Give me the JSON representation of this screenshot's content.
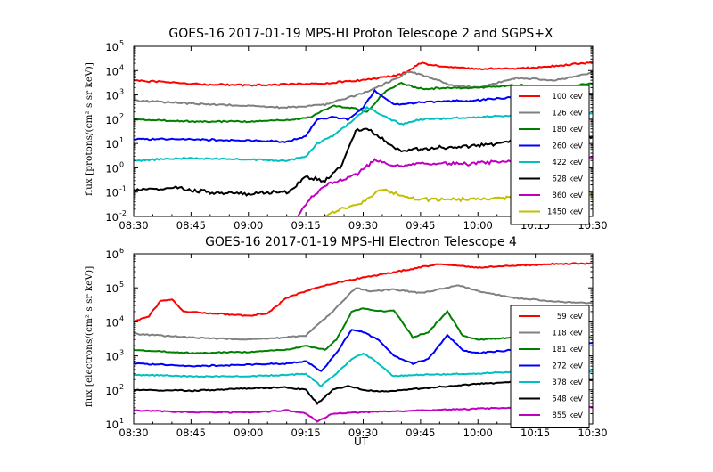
{
  "chart_data": [
    {
      "type": "line",
      "title": "GOES-16 2017-01-19 MPS-HI Proton Telescope 2 and SGPS+X",
      "ylabel": "flux [protons/(cm² s sr keV)]",
      "yscale": "log",
      "ylim_exp": [
        -2,
        5
      ],
      "y_ticks": [
        "10",
        "10",
        "10",
        "10",
        "10",
        "10",
        "10",
        "10"
      ],
      "y_tick_exponents": [
        "-2",
        "-1",
        "0",
        "1",
        "2",
        "3",
        "4",
        "5"
      ],
      "x_ticks": [
        "08:30",
        "08:45",
        "09:00",
        "09:15",
        "09:30",
        "09:45",
        "10:00",
        "10:15",
        "10:30"
      ],
      "x_tick_minutes": [
        510,
        525,
        540,
        555,
        570,
        585,
        600,
        615,
        630
      ],
      "xlim": [
        "08:30",
        "10:30"
      ],
      "legend_position": "right",
      "series": [
        {
          "name": "100 keV",
          "color": "#ff0000",
          "x": [
            "08:30",
            "08:45",
            "09:00",
            "09:10",
            "09:20",
            "09:30",
            "09:40",
            "09:45",
            "09:50",
            "10:00",
            "10:10",
            "10:20",
            "10:30"
          ],
          "y": [
            4000,
            2800,
            2500,
            2700,
            3000,
            4000,
            7000,
            20000,
            15000,
            12000,
            12000,
            15000,
            22000
          ]
        },
        {
          "name": "126 keV",
          "color": "#808080",
          "x": [
            "08:30",
            "08:45",
            "09:00",
            "09:10",
            "09:20",
            "09:30",
            "09:37",
            "09:42",
            "09:48",
            "09:53",
            "10:00",
            "10:10",
            "10:20",
            "10:30"
          ],
          "y": [
            600,
            450,
            350,
            300,
            400,
            1200,
            3500,
            9000,
            5000,
            2500,
            2000,
            5000,
            4000,
            8000
          ]
        },
        {
          "name": "180 keV",
          "color": "#008000",
          "x": [
            "08:30",
            "08:45",
            "09:00",
            "09:10",
            "09:16",
            "09:22",
            "09:27",
            "09:31",
            "09:36",
            "09:40",
            "09:45",
            "10:00",
            "10:10",
            "10:20",
            "10:30"
          ],
          "y": [
            100,
            80,
            80,
            90,
            120,
            350,
            300,
            200,
            1500,
            3000,
            1800,
            2000,
            2500,
            2000,
            3000
          ]
        },
        {
          "name": "260 keV",
          "color": "#0000ff",
          "x": [
            "08:30",
            "08:45",
            "09:00",
            "09:10",
            "09:15",
            "09:18",
            "09:22",
            "09:26",
            "09:30",
            "09:33",
            "09:38",
            "09:45",
            "10:00",
            "10:10",
            "10:20",
            "10:30"
          ],
          "y": [
            15,
            15,
            13,
            12,
            20,
            100,
            120,
            100,
            300,
            1500,
            400,
            500,
            600,
            800,
            1000,
            1200
          ]
        },
        {
          "name": "422 keV",
          "color": "#00c0c0",
          "x": [
            "08:30",
            "08:45",
            "09:00",
            "09:10",
            "09:15",
            "09:18",
            "09:22",
            "09:27",
            "09:31",
            "09:35",
            "09:40",
            "09:45",
            "10:00",
            "10:10",
            "10:20",
            "10:30"
          ],
          "y": [
            2,
            2.5,
            2.2,
            2,
            3,
            10,
            20,
            80,
            300,
            150,
            60,
            100,
            120,
            150,
            150,
            180
          ]
        },
        {
          "name": "628 keV",
          "color": "#000000",
          "x": [
            "08:30",
            "08:40",
            "08:50",
            "09:00",
            "09:05",
            "09:10",
            "09:15",
            "09:20",
            "09:24",
            "09:28",
            "09:31",
            "09:35",
            "09:40",
            "09:45",
            "10:00",
            "10:10",
            "10:20",
            "10:30"
          ],
          "y": [
            0.12,
            0.15,
            0.1,
            0.08,
            0.1,
            0.1,
            0.4,
            0.3,
            1,
            30,
            45,
            15,
            5,
            6,
            8,
            12,
            15,
            20
          ]
        },
        {
          "name": "860 keV",
          "color": "#c000c0",
          "x": [
            "09:13",
            "09:16",
            "09:20",
            "09:24",
            "09:28",
            "09:33",
            "09:38",
            "09:45",
            "10:00",
            "10:10",
            "10:20",
            "10:30"
          ],
          "y": [
            0.01,
            0.05,
            0.2,
            0.3,
            0.5,
            2,
            1.2,
            1.5,
            1.5,
            2,
            2.5,
            2.8
          ]
        },
        {
          "name": "1450 keV",
          "color": "#c0c000",
          "x": [
            "09:20",
            "09:24",
            "09:28",
            "09:31",
            "09:35",
            "09:40",
            "09:45",
            "10:00",
            "10:10",
            "10:20",
            "10:30"
          ],
          "y": [
            0.01,
            0.02,
            0.03,
            0.05,
            0.12,
            0.07,
            0.05,
            0.05,
            0.06,
            0.06,
            0.07
          ]
        }
      ]
    },
    {
      "type": "line",
      "title": "GOES-16 2017-01-19 MPS-HI Electron Telescope 4",
      "ylabel": "flux [electrons/(cm² s sr keV)]",
      "xlabel": "UT",
      "yscale": "log",
      "ylim_exp": [
        1,
        6
      ],
      "y_ticks": [
        "10",
        "10",
        "10",
        "10",
        "10",
        "10"
      ],
      "y_tick_exponents": [
        "1",
        "2",
        "3",
        "4",
        "5",
        "6"
      ],
      "x_ticks": [
        "08:30",
        "08:45",
        "09:00",
        "09:15",
        "09:30",
        "09:45",
        "10:00",
        "10:15",
        "10:30"
      ],
      "x_tick_minutes": [
        510,
        525,
        540,
        555,
        570,
        585,
        600,
        615,
        630
      ],
      "xlim": [
        "08:30",
        "10:30"
      ],
      "legend_position": "right",
      "series": [
        {
          "name": "59 keV",
          "color": "#ff0000",
          "x": [
            "08:30",
            "08:34",
            "08:37",
            "08:40",
            "08:43",
            "08:50",
            "09:00",
            "09:05",
            "09:10",
            "09:15",
            "09:20",
            "09:30",
            "09:45",
            "09:50",
            "10:00",
            "10:10",
            "10:20",
            "10:30"
          ],
          "y": [
            10000,
            15000,
            40000,
            45000,
            20000,
            18000,
            15000,
            18000,
            50000,
            80000,
            120000,
            200000,
            400000,
            500000,
            400000,
            450000,
            500000,
            520000
          ]
        },
        {
          "name": "118 keV",
          "color": "#808080",
          "x": [
            "08:30",
            "08:45",
            "09:00",
            "09:10",
            "09:15",
            "09:22",
            "09:28",
            "09:32",
            "09:38",
            "09:45",
            "09:55",
            "10:00",
            "10:10",
            "10:20",
            "10:30"
          ],
          "y": [
            4500,
            3500,
            3000,
            3500,
            4000,
            20000,
            100000,
            80000,
            90000,
            70000,
            120000,
            80000,
            50000,
            40000,
            35000
          ]
        },
        {
          "name": "181 keV",
          "color": "#008000",
          "x": [
            "08:30",
            "08:45",
            "09:00",
            "09:10",
            "09:15",
            "09:20",
            "09:23",
            "09:27",
            "09:30",
            "09:35",
            "09:38",
            "09:43",
            "09:47",
            "09:52",
            "09:56",
            "10:00",
            "10:10",
            "10:20",
            "10:30"
          ],
          "y": [
            1500,
            1200,
            1300,
            1500,
            2000,
            1500,
            3000,
            20000,
            25000,
            20000,
            22000,
            3500,
            5000,
            20000,
            4000,
            3000,
            3500,
            4000,
            3500
          ]
        },
        {
          "name": "272 keV",
          "color": "#0000ff",
          "x": [
            "08:30",
            "08:45",
            "09:00",
            "09:10",
            "09:15",
            "09:19",
            "09:23",
            "09:27",
            "09:30",
            "09:34",
            "09:38",
            "09:43",
            "09:47",
            "09:52",
            "09:56",
            "10:00",
            "10:10",
            "10:20",
            "10:30"
          ],
          "y": [
            600,
            500,
            550,
            600,
            700,
            350,
            1200,
            6000,
            5000,
            3000,
            1000,
            600,
            800,
            4000,
            1500,
            1200,
            1500,
            1800,
            2500
          ]
        },
        {
          "name": "378 keV",
          "color": "#00c0c0",
          "x": [
            "08:30",
            "08:45",
            "09:00",
            "09:10",
            "09:15",
            "09:19",
            "09:23",
            "09:27",
            "09:30",
            "09:34",
            "09:38",
            "09:45",
            "10:00",
            "10:10",
            "10:20",
            "10:30"
          ],
          "y": [
            280,
            250,
            250,
            280,
            300,
            130,
            300,
            800,
            1200,
            600,
            250,
            280,
            300,
            350,
            300,
            350
          ]
        },
        {
          "name": "548 keV",
          "color": "#000000",
          "x": [
            "08:30",
            "08:45",
            "09:00",
            "09:10",
            "09:15",
            "09:18",
            "09:22",
            "09:26",
            "09:30",
            "09:35",
            "09:45",
            "10:00",
            "10:10",
            "10:20",
            "10:30"
          ],
          "y": [
            100,
            95,
            110,
            120,
            100,
            40,
            100,
            130,
            100,
            90,
            110,
            150,
            170,
            180,
            200
          ]
        },
        {
          "name": "855 keV",
          "color": "#c000c0",
          "x": [
            "08:30",
            "08:45",
            "09:00",
            "09:10",
            "09:15",
            "09:18",
            "09:22",
            "09:30",
            "09:45",
            "10:00",
            "10:10",
            "10:20",
            "10:30"
          ],
          "y": [
            25,
            22,
            22,
            25,
            20,
            12,
            20,
            22,
            25,
            28,
            30,
            30,
            32
          ]
        }
      ]
    }
  ]
}
